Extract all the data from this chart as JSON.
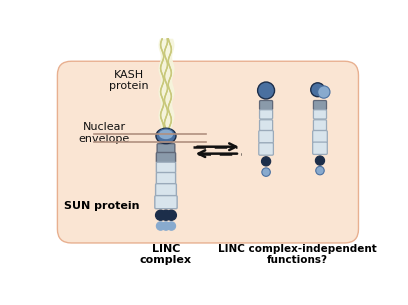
{
  "bg_color": "#ffffff",
  "cell_fill": "#fae5d3",
  "cell_edge": "#e8b090",
  "kash_fill": "#f5f5dc",
  "kash_edge": "#c8c87a",
  "kash_inner": "#fffff0",
  "sun_dark": "#1c2e4a",
  "sun_med": "#4a70a0",
  "sun_light": "#88aace",
  "coil_dark_fill": "#8a9aaa",
  "coil_dark_edge": "#606878",
  "coil_light_fill": "#d8e4ec",
  "coil_light_edge": "#9aaaba",
  "arrow_color": "#111111",
  "text_color": "#111111",
  "bold_color": "#000000",
  "label_kash": "KASH\nprotein",
  "label_nuclear": "Nuclear\nenvelope",
  "label_sun": "SUN protein",
  "label_linc": "LINC\ncomplex",
  "label_indep": "LINC complex-independent\nfunctions?"
}
